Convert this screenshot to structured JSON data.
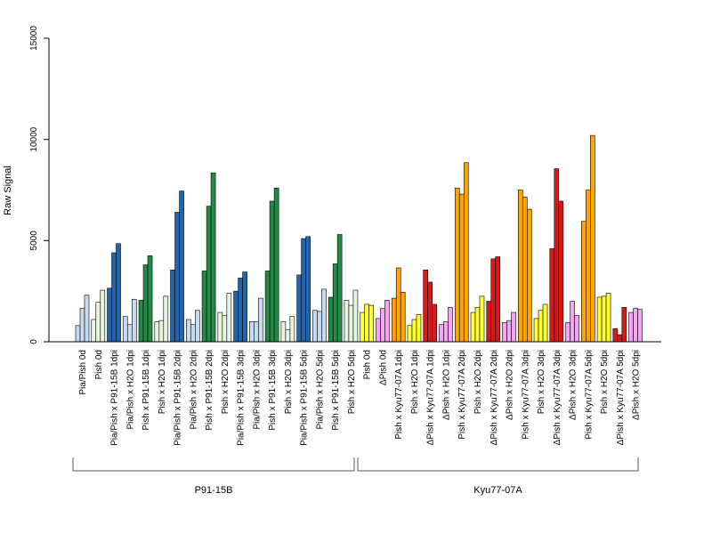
{
  "chart_data": {
    "type": "bar",
    "ylabel": "Raw Signal",
    "ylim": [
      0,
      15000
    ],
    "yticks": [
      "0",
      "5000",
      "10000",
      "15000"
    ],
    "grid": false,
    "bars_per_group": 3,
    "categories": [
      "Pia/Pish 0d",
      "Pish 0d",
      "Pia/Pish x P91-15B 1dpi",
      "Pia/Pish x H2O 1dpi",
      "Pish x P91-15B 1dpi",
      "Pish x H2O 1dpi",
      "Pia/Pish x P91-15B 2dpi",
      "Pia/Pish x H2O 2dpi",
      "Pish x P91-15B 2dpi",
      "Pish x H2O 2dpi",
      "Pia/Pish x P91-15B 3dpi",
      "Pia/Pish x H2O 3dpi",
      "Pish x P91-15B 3dpi",
      "Pish x H2O 3dpi",
      "Pia/Pish x P91-15B 5dpi",
      "Pia/Pish x H2O 5dpi",
      "Pish x P91-15B 5dpi",
      "Pish x H2O 5dpi",
      "Pish 0d",
      "ΔPish 0d",
      "Pish x Kyu77-07A 1dpi",
      "Pish x H2O 1dpi",
      "ΔPish x Kyu77-07A 1dpi",
      "ΔPish x H2O 1dpi",
      "Pish x Kyu77-07A 2dpi",
      "Pish x H2O 2dpi",
      "ΔPish x Kyu77-07A 2dpi",
      "ΔPish x H2O 2dpi",
      "Pish x Kyu77-07A 3dpi",
      "Pish x H2O 3dpi",
      "ΔPish x Kyu77-07A 3dpi",
      "ΔPish x H2O 3dpi",
      "Pish x Kyu77-07A 5dpi",
      "Pish x H2O 5dpi",
      "ΔPish x Kyu77-07A 5dpi",
      "ΔPish x H2O 5dpi"
    ],
    "groups": [
      {
        "name": "P91-15B",
        "from": 0,
        "to": 17
      },
      {
        "name": "Kyu77-07A",
        "from": 18,
        "to": 35
      }
    ],
    "colors": [
      "#c6dbef",
      "#e5f5e0",
      "#2166ac",
      "#c6dbef",
      "#238b45",
      "#e5f5e0",
      "#2166ac",
      "#c6dbef",
      "#238b45",
      "#e5f5e0",
      "#2166ac",
      "#c6dbef",
      "#238b45",
      "#e5f5e0",
      "#2166ac",
      "#c6dbef",
      "#238b45",
      "#e5f5e0",
      "#ffff33",
      "#f4a6f4",
      "#ffa500",
      "#ffff33",
      "#d7191c",
      "#f4a6f4",
      "#ffa500",
      "#ffff33",
      "#d7191c",
      "#f4a6f4",
      "#ffa500",
      "#ffff33",
      "#d7191c",
      "#f4a6f4",
      "#ffa500",
      "#ffff33",
      "#d7191c",
      "#f4a6f4"
    ],
    "values": [
      [
        800,
        1650,
        2300
      ],
      [
        1100,
        1950,
        2550
      ],
      [
        2650,
        4400,
        4850
      ],
      [
        1250,
        850,
        2100
      ],
      [
        2050,
        3800,
        4250
      ],
      [
        1000,
        1050,
        2250
      ],
      [
        3550,
        6400,
        7450
      ],
      [
        1100,
        850,
        1550
      ],
      [
        3500,
        6700,
        8350
      ],
      [
        1450,
        1300,
        2400
      ],
      [
        2500,
        3150,
        3450
      ],
      [
        1000,
        1000,
        2150
      ],
      [
        3500,
        6950,
        7600
      ],
      [
        1000,
        600,
        1250
      ],
      [
        3300,
        5100,
        5200
      ],
      [
        1550,
        1500,
        2600
      ],
      [
        2200,
        3850,
        5300
      ],
      [
        2050,
        1800,
        2550
      ],
      [
        1450,
        1850,
        1800
      ],
      [
        1150,
        1650,
        2050
      ],
      [
        2150,
        3650,
        2450
      ],
      [
        800,
        1100,
        1350
      ],
      [
        3550,
        2950,
        1850
      ],
      [
        850,
        1000,
        1700
      ],
      [
        7600,
        7300,
        8850
      ],
      [
        1450,
        1700,
        2250
      ],
      [
        2000,
        4100,
        4200
      ],
      [
        950,
        1050,
        1450
      ],
      [
        7500,
        7150,
        6550
      ],
      [
        1150,
        1550,
        1850
      ],
      [
        4600,
        8550,
        6950
      ],
      [
        950,
        2000,
        1300
      ],
      [
        5950,
        7500,
        10200
      ],
      [
        2200,
        2250,
        2400
      ],
      [
        650,
        350,
        1700
      ],
      [
        1450,
        1650,
        1600
      ]
    ]
  }
}
